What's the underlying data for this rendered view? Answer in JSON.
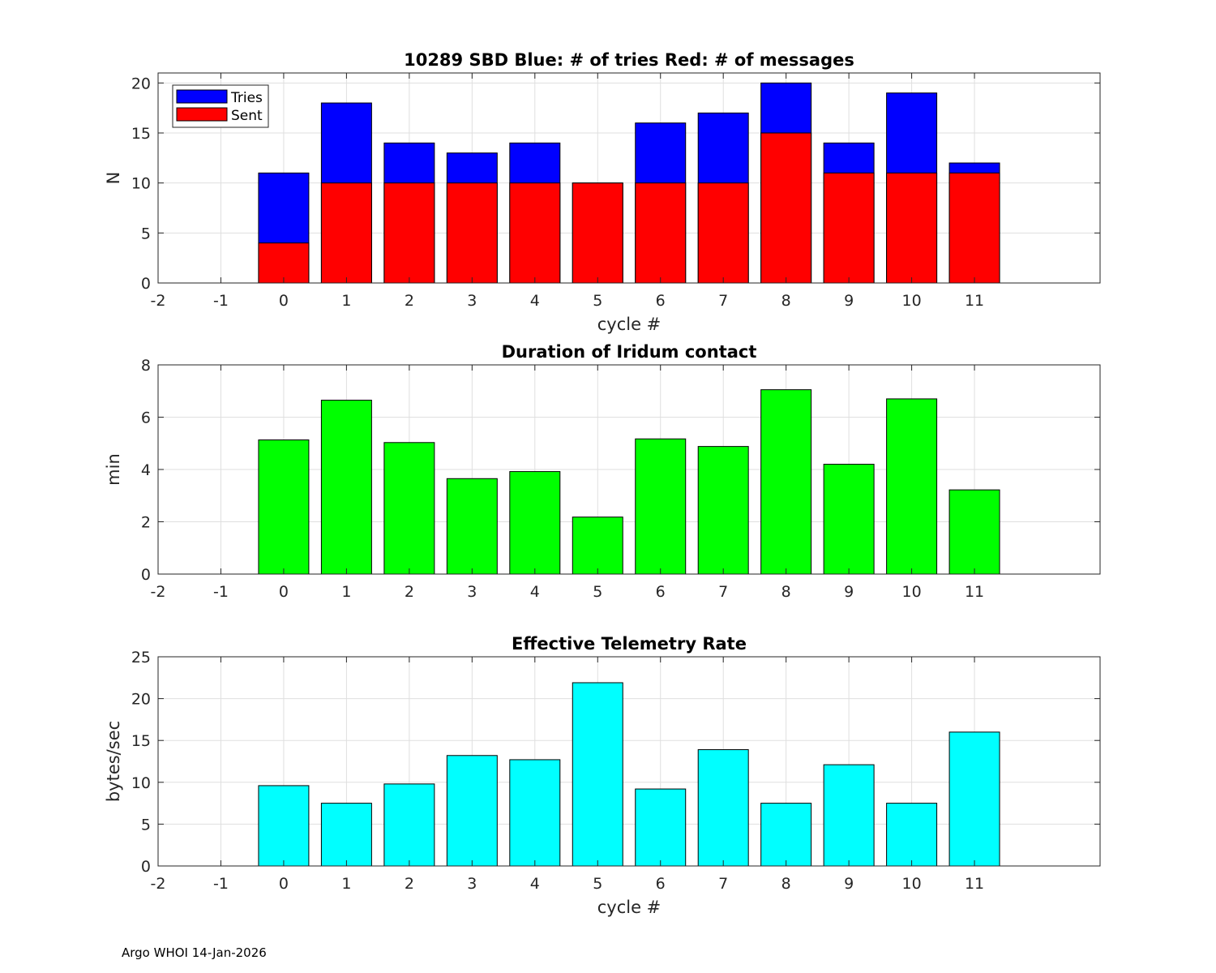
{
  "chart_data": [
    {
      "type": "bar",
      "stacked": "overlay",
      "title": "10289 SBD  Blue: # of tries   Red: # of messages",
      "xlabel": "cycle #",
      "ylabel": "N",
      "xlim": [
        -2,
        13
      ],
      "ylim": [
        0,
        21
      ],
      "xticks": [
        -2,
        -1,
        0,
        1,
        2,
        3,
        4,
        5,
        6,
        7,
        8,
        9,
        10,
        11
      ],
      "yticks": [
        0,
        5,
        10,
        15,
        20
      ],
      "grid": true,
      "legend_position": "top-left",
      "x": [
        0,
        1,
        2,
        3,
        4,
        5,
        6,
        7,
        8,
        9,
        10,
        11
      ],
      "series": [
        {
          "name": "Tries",
          "color": "#0000ff",
          "values": [
            11,
            18,
            14,
            13,
            14,
            10,
            16,
            17,
            20,
            14,
            19,
            12
          ]
        },
        {
          "name": "Sent",
          "color": "#ff0000",
          "values": [
            4,
            10,
            10,
            10,
            10,
            10,
            10,
            10,
            15,
            11,
            11,
            11
          ]
        }
      ]
    },
    {
      "type": "bar",
      "title": "Duration of Iridum contact",
      "xlabel": "",
      "ylabel": "min",
      "xlim": [
        -2,
        13
      ],
      "ylim": [
        0,
        8
      ],
      "xticks": [
        -2,
        -1,
        0,
        1,
        2,
        3,
        4,
        5,
        6,
        7,
        8,
        9,
        10,
        11
      ],
      "yticks": [
        0,
        2,
        4,
        6,
        8
      ],
      "grid": true,
      "x": [
        0,
        1,
        2,
        3,
        4,
        5,
        6,
        7,
        8,
        9,
        10,
        11
      ],
      "series": [
        {
          "name": "Duration",
          "color": "#00ff00",
          "values": [
            5.13,
            6.65,
            5.03,
            3.65,
            3.92,
            2.18,
            5.17,
            4.88,
            7.05,
            4.2,
            6.7,
            3.22
          ]
        }
      ]
    },
    {
      "type": "bar",
      "title": "Effective Telemetry Rate",
      "xlabel": "cycle #",
      "ylabel": "bytes/sec",
      "xlim": [
        -2,
        13
      ],
      "ylim": [
        0,
        25
      ],
      "xticks": [
        -2,
        -1,
        0,
        1,
        2,
        3,
        4,
        5,
        6,
        7,
        8,
        9,
        10,
        11
      ],
      "yticks": [
        0,
        5,
        10,
        15,
        20,
        25
      ],
      "grid": true,
      "x": [
        0,
        1,
        2,
        3,
        4,
        5,
        6,
        7,
        8,
        9,
        10,
        11
      ],
      "series": [
        {
          "name": "Rate",
          "color": "#00ffff",
          "values": [
            9.6,
            7.5,
            9.8,
            13.2,
            12.7,
            21.9,
            9.2,
            13.9,
            7.5,
            12.1,
            7.5,
            16.0
          ]
        }
      ]
    }
  ],
  "footer": "Argo WHOI 14-Jan-2026"
}
